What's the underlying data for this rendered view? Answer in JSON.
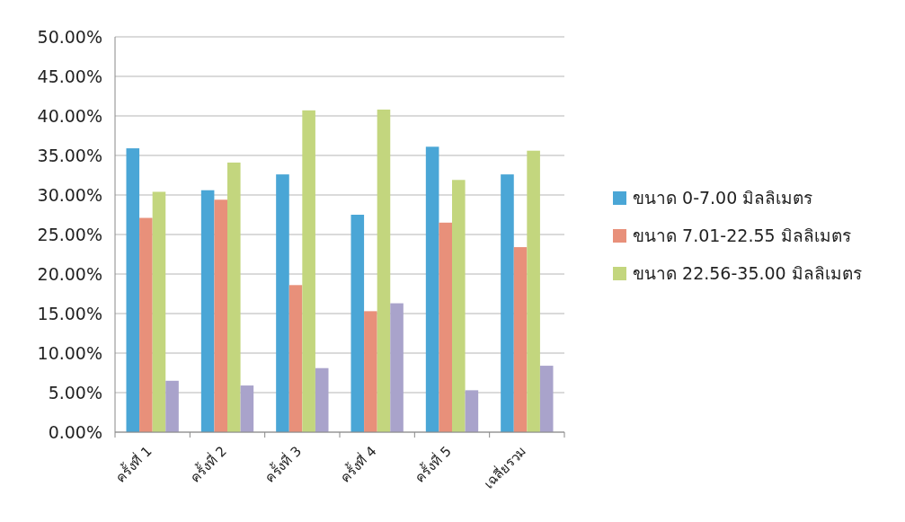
{
  "chart_data": {
    "type": "bar",
    "categories": [
      "ครั้งที่ 1",
      "ครั้งที่ 2",
      "ครั้งที่ 3",
      "ครั้งที่ 4",
      "ครั้งที่ 5",
      "เฉลี่ยรวม"
    ],
    "series": [
      {
        "name": "ขนาด 0-7.00 มิลลิเมตร",
        "color": "#4aa6d6",
        "values": [
          35.9,
          30.6,
          32.6,
          27.5,
          36.1,
          32.6
        ]
      },
      {
        "name": "ขนาด 7.01-22.55 มิลลิเมตร",
        "color": "#e8907a",
        "values": [
          27.1,
          29.4,
          18.6,
          15.3,
          26.5,
          23.4
        ]
      },
      {
        "name": "ขนาด 22.56-35.00 มิลลิเมตร",
        "color": "#c3d67e",
        "values": [
          30.4,
          34.1,
          40.7,
          40.8,
          31.9,
          35.6
        ]
      },
      {
        "color": "#a9a3cb",
        "values": [
          6.5,
          5.9,
          8.1,
          16.3,
          5.3,
          8.4
        ]
      }
    ],
    "ylim": [
      0,
      50
    ],
    "yticks": [
      {
        "value": 0,
        "label": "0.00%"
      },
      {
        "value": 5,
        "label": "5.00%"
      },
      {
        "value": 10,
        "label": "10.00%"
      },
      {
        "value": 15,
        "label": "15.00%"
      },
      {
        "value": 20,
        "label": "20.00%"
      },
      {
        "value": 25,
        "label": "25.00%"
      },
      {
        "value": 30,
        "label": "30.00%"
      },
      {
        "value": 35,
        "label": "35.00%"
      },
      {
        "value": 40,
        "label": "40.00%"
      },
      {
        "value": 45,
        "label": "45.00%"
      },
      {
        "value": 50,
        "label": "50.00%"
      }
    ],
    "grid": "y",
    "legend": "right"
  }
}
